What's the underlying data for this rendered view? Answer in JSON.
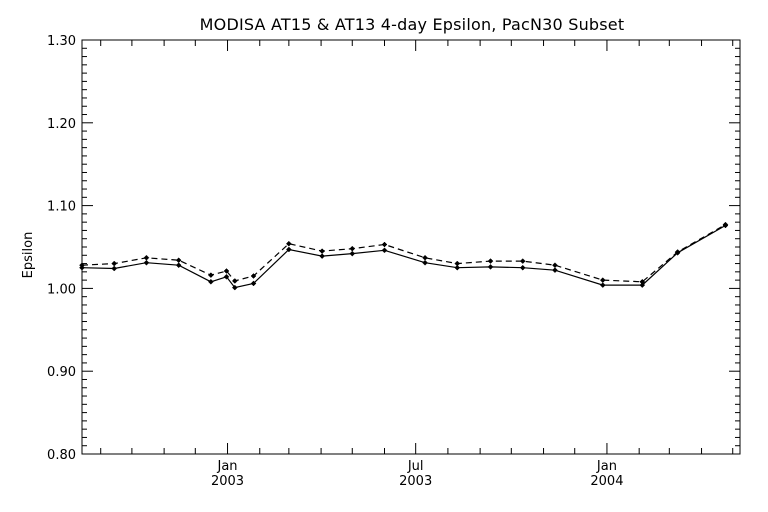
{
  "chart_data": {
    "type": "line",
    "title": "MODISA AT15 & AT13 4-day Epsilon, PacN30 Subset",
    "xlabel": "",
    "ylabel": "Epsilon",
    "ylim": [
      0.8,
      1.3
    ],
    "yticks": [
      {
        "value": 0.8,
        "label": "0.80"
      },
      {
        "value": 0.9,
        "label": "0.90"
      },
      {
        "value": 1.0,
        "label": "1.00"
      },
      {
        "value": 1.1,
        "label": "1.10"
      },
      {
        "value": 1.2,
        "label": "1.20"
      },
      {
        "value": 1.3,
        "label": "1.30"
      }
    ],
    "xlim": [
      "2002-08-14",
      "2004-05-08"
    ],
    "xticks": [
      {
        "date": "2003-01-01",
        "label": "Jan",
        "label2": "2003"
      },
      {
        "date": "2003-07-01",
        "label": "Jul",
        "label2": "2003"
      },
      {
        "date": "2004-01-01",
        "label": "Jan",
        "label2": "2004"
      }
    ],
    "grid": false,
    "series": [
      {
        "style": "solid",
        "color": "#000000",
        "points": [
          {
            "x": "2002-08-14",
            "y": 1.025
          },
          {
            "x": "2002-09-14",
            "y": 1.024
          },
          {
            "x": "2002-10-15",
            "y": 1.031
          },
          {
            "x": "2002-11-15",
            "y": 1.028
          },
          {
            "x": "2002-12-16",
            "y": 1.008
          },
          {
            "x": "2002-12-31",
            "y": 1.014
          },
          {
            "x": "2003-01-08",
            "y": 1.001
          },
          {
            "x": "2003-01-26",
            "y": 1.006
          },
          {
            "x": "2003-03-01",
            "y": 1.047
          },
          {
            "x": "2003-04-02",
            "y": 1.039
          },
          {
            "x": "2003-05-01",
            "y": 1.042
          },
          {
            "x": "2003-06-01",
            "y": 1.046
          },
          {
            "x": "2003-07-10",
            "y": 1.031
          },
          {
            "x": "2003-08-10",
            "y": 1.025
          },
          {
            "x": "2003-09-11",
            "y": 1.026
          },
          {
            "x": "2003-10-12",
            "y": 1.025
          },
          {
            "x": "2003-11-12",
            "y": 1.022
          },
          {
            "x": "2003-12-28",
            "y": 1.004
          },
          {
            "x": "2004-02-04",
            "y": 1.004
          },
          {
            "x": "2004-03-09",
            "y": 1.043
          },
          {
            "x": "2004-04-24",
            "y": 1.076
          }
        ]
      },
      {
        "style": "dashed",
        "color": "#000000",
        "points": [
          {
            "x": "2002-08-14",
            "y": 1.028
          },
          {
            "x": "2002-09-14",
            "y": 1.03
          },
          {
            "x": "2002-10-15",
            "y": 1.037
          },
          {
            "x": "2002-11-15",
            "y": 1.034
          },
          {
            "x": "2002-12-16",
            "y": 1.016
          },
          {
            "x": "2002-12-31",
            "y": 1.021
          },
          {
            "x": "2003-01-08",
            "y": 1.009
          },
          {
            "x": "2003-01-26",
            "y": 1.015
          },
          {
            "x": "2003-03-01",
            "y": 1.054
          },
          {
            "x": "2003-04-02",
            "y": 1.045
          },
          {
            "x": "2003-05-01",
            "y": 1.048
          },
          {
            "x": "2003-06-01",
            "y": 1.053
          },
          {
            "x": "2003-07-10",
            "y": 1.037
          },
          {
            "x": "2003-08-10",
            "y": 1.03
          },
          {
            "x": "2003-09-11",
            "y": 1.033
          },
          {
            "x": "2003-10-12",
            "y": 1.033
          },
          {
            "x": "2003-11-12",
            "y": 1.028
          },
          {
            "x": "2003-12-28",
            "y": 1.01
          },
          {
            "x": "2004-02-04",
            "y": 1.008
          },
          {
            "x": "2004-03-09",
            "y": 1.044
          },
          {
            "x": "2004-04-24",
            "y": 1.077
          }
        ]
      }
    ]
  }
}
